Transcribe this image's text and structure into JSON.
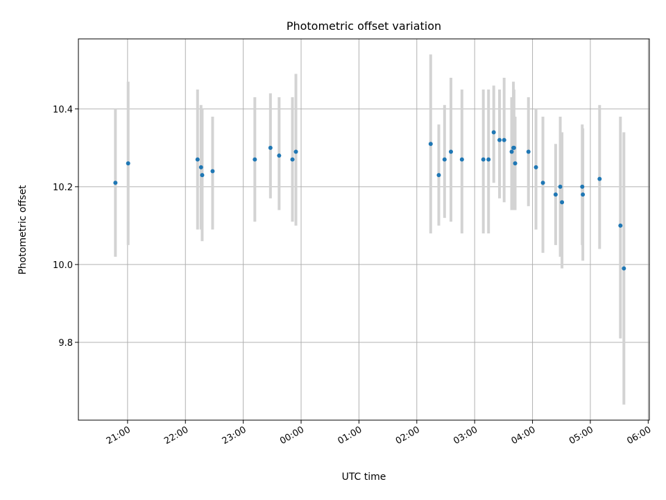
{
  "chart_data": {
    "type": "scatter",
    "title": "Photometric offset variation",
    "xlabel": "UTC time",
    "ylabel": "Photometric offset",
    "x_tick_labels": [
      "21:00",
      "22:00",
      "23:00",
      "00:00",
      "01:00",
      "02:00",
      "03:00",
      "04:00",
      "05:00",
      "06:00"
    ],
    "x_ticks_hours": [
      21,
      22,
      23,
      24,
      25,
      26,
      27,
      28,
      29,
      30
    ],
    "y_ticks": [
      9.8,
      10.0,
      10.2,
      10.4
    ],
    "y_tick_labels": [
      "9.8",
      "10.0",
      "10.2",
      "10.4"
    ],
    "xlim_hours": [
      20.15,
      30.02
    ],
    "ylim": [
      9.6,
      10.58
    ],
    "grid": true,
    "colors": {
      "marker": "#1f77b4",
      "errorbar": "#d3d3d3",
      "grid": "#b0b0b0",
      "axis": "#000000"
    },
    "series": [
      {
        "points": [
          {
            "t": 20.79,
            "y": 10.21,
            "lo": 10.02,
            "hi": 10.4
          },
          {
            "t": 21.01,
            "y": 10.26,
            "lo": 10.05,
            "hi": 10.47
          },
          {
            "t": 22.21,
            "y": 10.27,
            "lo": 10.09,
            "hi": 10.45
          },
          {
            "t": 22.27,
            "y": 10.25,
            "lo": 10.09,
            "hi": 10.41
          },
          {
            "t": 22.29,
            "y": 10.23,
            "lo": 10.06,
            "hi": 10.4
          },
          {
            "t": 22.47,
            "y": 10.24,
            "lo": 10.09,
            "hi": 10.38
          },
          {
            "t": 23.2,
            "y": 10.27,
            "lo": 10.11,
            "hi": 10.43
          },
          {
            "t": 23.47,
            "y": 10.3,
            "lo": 10.17,
            "hi": 10.44
          },
          {
            "t": 23.62,
            "y": 10.28,
            "lo": 10.14,
            "hi": 10.43
          },
          {
            "t": 23.85,
            "y": 10.27,
            "lo": 10.11,
            "hi": 10.43
          },
          {
            "t": 23.91,
            "y": 10.29,
            "lo": 10.1,
            "hi": 10.49
          },
          {
            "t": 26.24,
            "y": 10.31,
            "lo": 10.08,
            "hi": 10.54
          },
          {
            "t": 26.38,
            "y": 10.23,
            "lo": 10.1,
            "hi": 10.36
          },
          {
            "t": 26.48,
            "y": 10.27,
            "lo": 10.12,
            "hi": 10.41
          },
          {
            "t": 26.59,
            "y": 10.29,
            "lo": 10.11,
            "hi": 10.48
          },
          {
            "t": 26.78,
            "y": 10.27,
            "lo": 10.08,
            "hi": 10.45
          },
          {
            "t": 27.15,
            "y": 10.27,
            "lo": 10.08,
            "hi": 10.45
          },
          {
            "t": 27.24,
            "y": 10.27,
            "lo": 10.08,
            "hi": 10.45
          },
          {
            "t": 27.33,
            "y": 10.34,
            "lo": 10.21,
            "hi": 10.46
          },
          {
            "t": 27.43,
            "y": 10.32,
            "lo": 10.17,
            "hi": 10.45
          },
          {
            "t": 27.51,
            "y": 10.32,
            "lo": 10.16,
            "hi": 10.48
          },
          {
            "t": 27.64,
            "y": 10.29,
            "lo": 10.14,
            "hi": 10.43
          },
          {
            "t": 27.67,
            "y": 10.3,
            "lo": 10.15,
            "hi": 10.47
          },
          {
            "t": 27.68,
            "y": 10.3,
            "lo": 10.14,
            "hi": 10.45
          },
          {
            "t": 27.7,
            "y": 10.26,
            "lo": 10.14,
            "hi": 10.38
          },
          {
            "t": 27.93,
            "y": 10.29,
            "lo": 10.15,
            "hi": 10.43
          },
          {
            "t": 28.06,
            "y": 10.25,
            "lo": 10.09,
            "hi": 10.4
          },
          {
            "t": 28.18,
            "y": 10.21,
            "lo": 10.03,
            "hi": 10.38
          },
          {
            "t": 28.4,
            "y": 10.18,
            "lo": 10.05,
            "hi": 10.31
          },
          {
            "t": 28.48,
            "y": 10.2,
            "lo": 10.02,
            "hi": 10.38
          },
          {
            "t": 28.51,
            "y": 10.16,
            "lo": 9.99,
            "hi": 10.34
          },
          {
            "t": 28.86,
            "y": 10.2,
            "lo": 10.05,
            "hi": 10.36
          },
          {
            "t": 28.87,
            "y": 10.18,
            "lo": 10.01,
            "hi": 10.35
          },
          {
            "t": 29.16,
            "y": 10.22,
            "lo": 10.04,
            "hi": 10.41
          },
          {
            "t": 29.52,
            "y": 10.1,
            "lo": 9.81,
            "hi": 10.38
          },
          {
            "t": 29.58,
            "y": 9.99,
            "lo": 9.64,
            "hi": 10.34
          }
        ]
      }
    ]
  }
}
